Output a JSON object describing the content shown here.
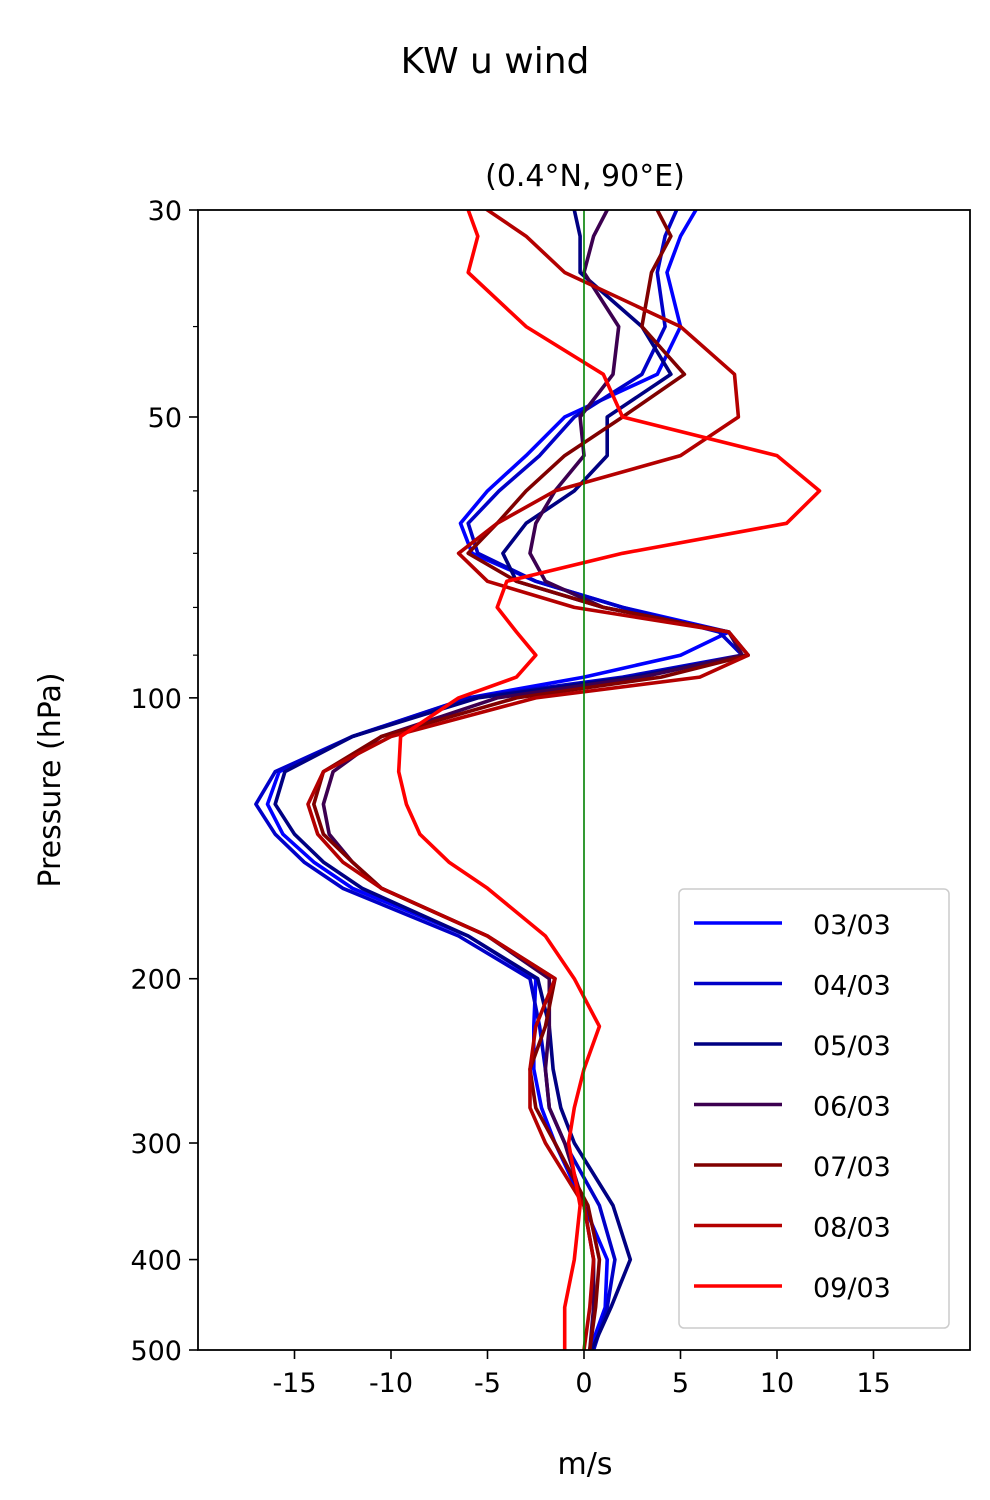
{
  "figure": {
    "suptitle": "KW u wind"
  },
  "chart_data": {
    "type": "line",
    "title": "(0.4°N, 90°E)",
    "xlabel": "m/s",
    "ylabel": "Pressure (hPa)",
    "xlim": [
      -20,
      20
    ],
    "ylim": [
      500,
      30
    ],
    "yscale": "log",
    "x_ticks": [
      -15,
      -10,
      -5,
      0,
      5,
      10,
      15
    ],
    "x_tick_labels": [
      "-15",
      "-10",
      "-5",
      "0",
      "5",
      "10",
      "15"
    ],
    "y_ticks": [
      30,
      50,
      100,
      200,
      300,
      400,
      500
    ],
    "y_tick_labels": [
      "30",
      "50",
      "100",
      "200",
      "300",
      "400",
      "500"
    ],
    "y_minor_ticks": [
      40,
      60,
      70,
      80,
      90
    ],
    "reference_line": {
      "x": 0,
      "color": "#008000"
    },
    "legend": {
      "position": "lower-right"
    },
    "pressure_levels": [
      30,
      32,
      35,
      40,
      45,
      50,
      55,
      60,
      65,
      70,
      75,
      80,
      85,
      90,
      95,
      100,
      110,
      120,
      130,
      140,
      150,
      160,
      180,
      200,
      225,
      250,
      275,
      300,
      350,
      400,
      450,
      500
    ],
    "series": [
      {
        "name": "03/03",
        "color": "#0000ff",
        "values": [
          5.8,
          5.0,
          4.3,
          5.0,
          3.8,
          -1.0,
          -3.0,
          -5.0,
          -6.4,
          -5.8,
          -2.5,
          2.0,
          7.5,
          5.0,
          0.0,
          -6.0,
          -12.0,
          -15.8,
          -16.4,
          -15.6,
          -14.0,
          -12.0,
          -6.0,
          -2.5,
          -2.6,
          -2.6,
          -2.2,
          -1.5,
          0.0,
          1.2,
          1.1,
          0.3
        ]
      },
      {
        "name": "04/03",
        "color": "#0000c8",
        "values": [
          4.8,
          4.2,
          3.8,
          4.2,
          3.0,
          -0.5,
          -2.3,
          -4.4,
          -6.0,
          -5.5,
          -2.5,
          2.0,
          7.0,
          8.2,
          2.0,
          -6.0,
          -12.0,
          -16.0,
          -17.0,
          -16.0,
          -14.5,
          -12.5,
          -6.5,
          -2.8,
          -2.3,
          -2.0,
          -1.8,
          -1.0,
          0.8,
          1.6,
          1.2,
          0.5
        ]
      },
      {
        "name": "05/03",
        "color": "#000082",
        "values": [
          -0.5,
          -0.2,
          -0.2,
          3.0,
          4.5,
          1.2,
          1.2,
          -0.5,
          -3.0,
          -4.2,
          -3.5,
          1.0,
          7.5,
          8.5,
          2.5,
          -5.5,
          -12.0,
          -15.5,
          -16.0,
          -15.0,
          -13.5,
          -11.5,
          -6.0,
          -2.4,
          -1.8,
          -1.6,
          -1.2,
          -0.5,
          1.5,
          2.4,
          1.4,
          0.4
        ]
      },
      {
        "name": "06/03",
        "color": "#3c0050",
        "values": [
          1.2,
          0.5,
          0.0,
          1.8,
          1.5,
          -0.2,
          0.0,
          -1.5,
          -2.5,
          -2.8,
          -2.0,
          1.0,
          7.5,
          8.2,
          3.0,
          -4.5,
          -10.5,
          -13.0,
          -13.5,
          -13.2,
          -12.0,
          -10.5,
          -5.0,
          -1.8,
          -1.8,
          -2.0,
          -1.8,
          -1.0,
          0.0,
          0.5,
          0.5,
          0.3
        ]
      },
      {
        "name": "07/03",
        "color": "#800000",
        "values": [
          3.8,
          4.5,
          3.5,
          3.0,
          5.2,
          2.0,
          -1.0,
          -3.0,
          -4.5,
          -6.0,
          -3.5,
          1.0,
          7.5,
          8.5,
          4.0,
          -3.5,
          -10.5,
          -13.5,
          -14.0,
          -13.5,
          -12.0,
          -10.5,
          -5.0,
          -1.5,
          -2.0,
          -2.8,
          -2.5,
          -1.5,
          0.2,
          0.8,
          0.6,
          0.3
        ]
      },
      {
        "name": "08/03",
        "color": "#b40000",
        "values": [
          -5.0,
          -3.0,
          -1.0,
          5.0,
          7.8,
          8.0,
          5.0,
          -1.5,
          -4.5,
          -6.5,
          -5.0,
          -0.5,
          7.5,
          8.5,
          6.0,
          -2.5,
          -10.0,
          -13.5,
          -14.3,
          -13.8,
          -12.5,
          -10.5,
          -5.0,
          -1.5,
          -2.5,
          -2.8,
          -2.8,
          -2.0,
          0.0,
          0.5,
          0.3,
          0.0
        ]
      },
      {
        "name": "09/03",
        "color": "#ff0000",
        "values": [
          -6.0,
          -5.5,
          -6.0,
          -3.0,
          1.0,
          2.0,
          10.0,
          12.2,
          10.5,
          2.0,
          -4.0,
          -4.5,
          -3.5,
          -2.5,
          -3.5,
          -6.5,
          -9.5,
          -9.6,
          -9.2,
          -8.5,
          -7.0,
          -5.0,
          -2.0,
          -0.5,
          0.8,
          0.0,
          -0.5,
          -0.8,
          -0.2,
          -0.5,
          -1.0,
          -1.0
        ]
      }
    ]
  }
}
